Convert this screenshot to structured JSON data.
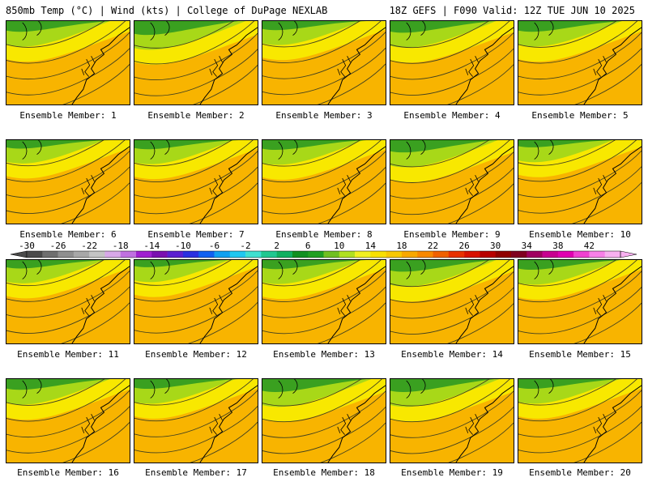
{
  "header": {
    "left": "850mb Temp (°C) | Wind (kts) | College of DuPage NEXLAB",
    "right": "18Z GEFS | F090 Valid: 12Z TUE JUN 10 2025"
  },
  "members": [
    {
      "label": "Ensemble Member: 1",
      "warmth": 0.55
    },
    {
      "label": "Ensemble Member: 2",
      "warmth": 0.45
    },
    {
      "label": "Ensemble Member: 3",
      "warmth": 0.6
    },
    {
      "label": "Ensemble Member: 4",
      "warmth": 0.52
    },
    {
      "label": "Ensemble Member: 5",
      "warmth": 0.55
    },
    {
      "label": "Ensemble Member: 6",
      "warmth": 0.62
    },
    {
      "label": "Ensemble Member: 7",
      "warmth": 0.6
    },
    {
      "label": "Ensemble Member: 8",
      "warmth": 0.58
    },
    {
      "label": "Ensemble Member: 9",
      "warmth": 0.5
    },
    {
      "label": "Ensemble Member: 10",
      "warmth": 0.66
    },
    {
      "label": "Ensemble Member: 11",
      "warmth": 0.62
    },
    {
      "label": "Ensemble Member: 12",
      "warmth": 0.66
    },
    {
      "label": "Ensemble Member: 13",
      "warmth": 0.6
    },
    {
      "label": "Ensemble Member: 14",
      "warmth": 0.52
    },
    {
      "label": "Ensemble Member: 15",
      "warmth": 0.58
    },
    {
      "label": "Ensemble Member: 16",
      "warmth": 0.55
    },
    {
      "label": "Ensemble Member: 17",
      "warmth": 0.58
    },
    {
      "label": "Ensemble Member: 18",
      "warmth": 0.48
    },
    {
      "label": "Ensemble Member: 19",
      "warmth": 0.48
    },
    {
      "label": "Ensemble Member: 20",
      "warmth": 0.58
    }
  ],
  "colorbar": {
    "tick_labels": [
      "-30",
      "-26",
      "-22",
      "-18",
      "-14",
      "-10",
      "-6",
      "-2",
      "2",
      "6",
      "10",
      "14",
      "18",
      "22",
      "26",
      "30",
      "34",
      "38",
      "42"
    ],
    "colors": [
      "#4a4a4a",
      "#6f6f6f",
      "#8f8f8f",
      "#a8a8a8",
      "#c4c4c4",
      "#d8a8e8",
      "#c070e0",
      "#a020d0",
      "#7a10b0",
      "#5a20d0",
      "#2a30e0",
      "#1060f0",
      "#10a0f0",
      "#20c8f0",
      "#40e0d0",
      "#20c890",
      "#10b060",
      "#109020",
      "#20a020",
      "#70c020",
      "#b0e020",
      "#f0f020",
      "#f8e000",
      "#f8c800",
      "#f8a800",
      "#f88800",
      "#f06000",
      "#e83000",
      "#d81000",
      "#b80000",
      "#900000",
      "#800020",
      "#a00060",
      "#c80090",
      "#e000b0",
      "#f040d0",
      "#f880e8",
      "#f8b0f0"
    ],
    "min": -30,
    "max": 46
  }
}
